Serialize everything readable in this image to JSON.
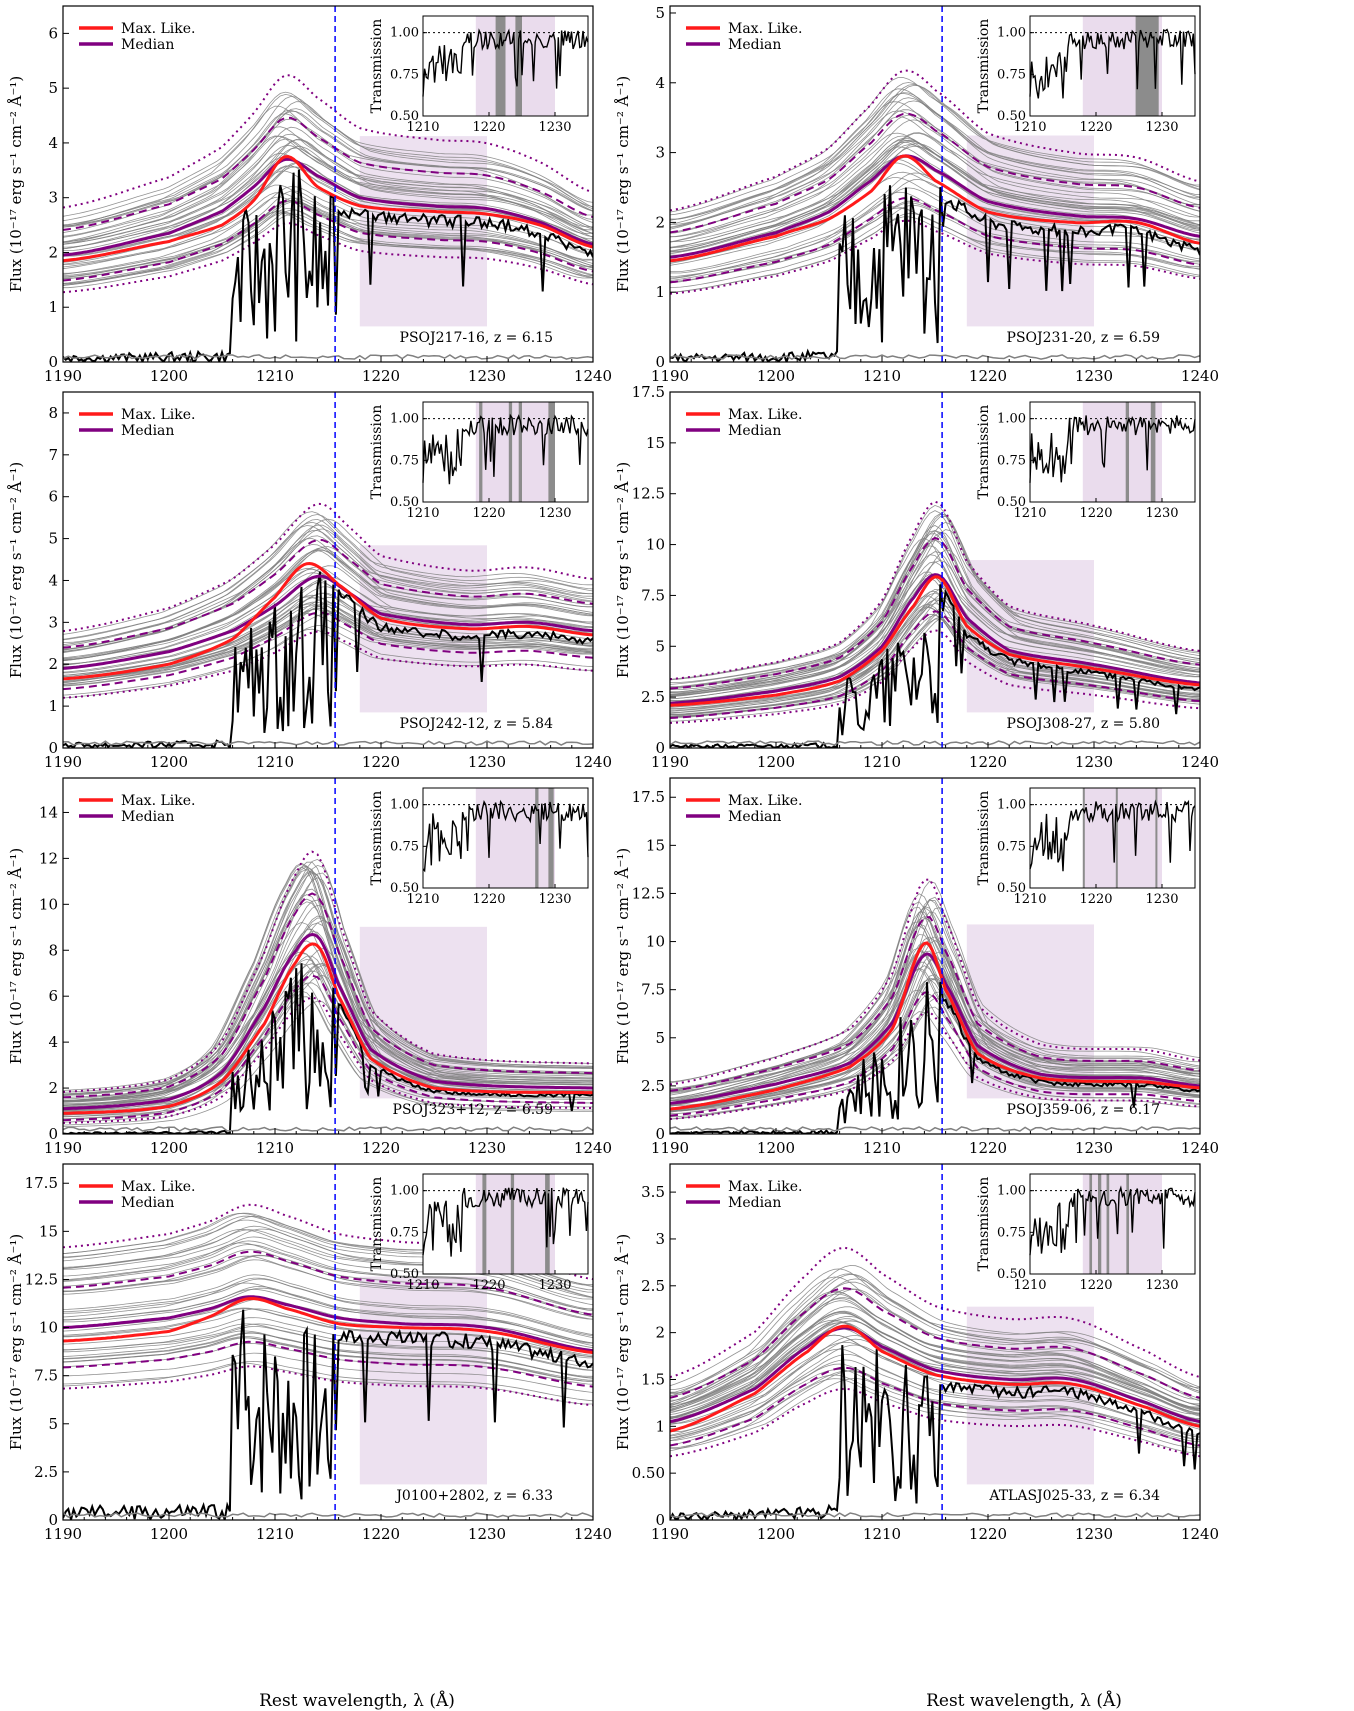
{
  "figure": {
    "xlabel": "Rest wavelength, λ (Å)",
    "ylabel": "Flux (10⁻¹⁷ erg s⁻¹ cm⁻² Å⁻¹)",
    "inset_ylabel": "Transmission",
    "legend": [
      "Max. Like.",
      "Median"
    ],
    "colors": {
      "samples": "#808080",
      "max_like": "#ff1a1a",
      "median": "#800080",
      "observed": "#000000",
      "noise": "#808080",
      "lya_line": "#0000ff",
      "shade": "#eadced",
      "mask": "#8c8c8c"
    }
  },
  "chart_data": [
    {
      "type": "line",
      "object_label": "PSOJ217-16, z = 6.15",
      "xlim": [
        1190,
        1240
      ],
      "ylim": [
        0,
        6.5
      ],
      "xticks": [
        1190,
        1200,
        1210,
        1220,
        1230,
        1240
      ],
      "yticks": [
        0,
        1,
        2,
        3,
        4,
        5,
        6
      ],
      "lya_line_x": 1215.67,
      "shaded_region": [
        1218,
        1230
      ],
      "series": [
        {
          "name": "Max. Like.",
          "x": [
            1190,
            1200,
            1205,
            1208,
            1211,
            1214,
            1218,
            1225,
            1230,
            1235,
            1240
          ],
          "y": [
            1.85,
            2.2,
            2.5,
            2.95,
            3.75,
            3.2,
            2.85,
            2.75,
            2.7,
            2.5,
            2.1
          ]
        },
        {
          "name": "Median",
          "x": [
            1190,
            1200,
            1205,
            1208,
            1211,
            1214,
            1218,
            1225,
            1230,
            1235,
            1240
          ],
          "y": [
            1.95,
            2.35,
            2.75,
            3.2,
            3.7,
            3.4,
            3.0,
            2.85,
            2.8,
            2.55,
            2.15
          ]
        }
      ],
      "inset": {
        "xlim": [
          1210,
          1235
        ],
        "ylim": [
          0.5,
          1.1
        ],
        "xticks": [
          1210,
          1220,
          1230
        ],
        "yticks": [
          0.5,
          0.75,
          1.0
        ],
        "mask_bands": [
          [
            1221,
            1222.5
          ],
          [
            1224,
            1225
          ]
        ]
      }
    },
    {
      "type": "line",
      "object_label": "PSOJ231-20, z = 6.59",
      "xlim": [
        1190,
        1240
      ],
      "ylim": [
        0,
        5.1
      ],
      "xticks": [
        1190,
        1200,
        1210,
        1220,
        1230,
        1240
      ],
      "yticks": [
        0,
        1,
        2,
        3,
        4,
        5
      ],
      "lya_line_x": 1215.67,
      "shaded_region": [
        1218,
        1230
      ],
      "series": [
        {
          "name": "Max. Like.",
          "x": [
            1190,
            1200,
            1205,
            1209,
            1212,
            1215,
            1220,
            1228,
            1234,
            1240
          ],
          "y": [
            1.45,
            1.8,
            2.05,
            2.45,
            2.95,
            2.6,
            2.15,
            2.0,
            2.0,
            1.7
          ]
        },
        {
          "name": "Median",
          "x": [
            1190,
            1200,
            1205,
            1209,
            1212,
            1215,
            1220,
            1228,
            1234,
            1240
          ],
          "y": [
            1.5,
            1.85,
            2.15,
            2.6,
            2.95,
            2.75,
            2.3,
            2.1,
            2.05,
            1.8
          ]
        }
      ],
      "inset": {
        "xlim": [
          1210,
          1235
        ],
        "ylim": [
          0.5,
          1.1
        ],
        "xticks": [
          1210,
          1220,
          1230
        ],
        "yticks": [
          0.5,
          0.75,
          1.0
        ],
        "mask_bands": [
          [
            1226,
            1229.5
          ]
        ]
      }
    },
    {
      "type": "line",
      "object_label": "PSOJ242-12, z = 5.84",
      "xlim": [
        1190,
        1240
      ],
      "ylim": [
        0,
        8.5
      ],
      "xticks": [
        1190,
        1200,
        1210,
        1220,
        1230,
        1240
      ],
      "yticks": [
        0,
        1,
        2,
        3,
        4,
        5,
        6,
        7,
        8
      ],
      "lya_line_x": 1215.67,
      "shaded_region": [
        1218,
        1230
      ],
      "series": [
        {
          "name": "Max. Like.",
          "x": [
            1190,
            1200,
            1206,
            1210,
            1213,
            1216,
            1220,
            1228,
            1234,
            1240
          ],
          "y": [
            1.65,
            2.0,
            2.6,
            3.6,
            4.4,
            3.9,
            3.1,
            2.85,
            2.9,
            2.7
          ]
        },
        {
          "name": "Median",
          "x": [
            1190,
            1200,
            1206,
            1210,
            1214,
            1217,
            1220,
            1228,
            1234,
            1240
          ],
          "y": [
            1.9,
            2.3,
            2.8,
            3.4,
            4.1,
            3.7,
            3.2,
            2.95,
            3.0,
            2.8
          ]
        }
      ],
      "inset": {
        "xlim": [
          1210,
          1235
        ],
        "ylim": [
          0.5,
          1.1
        ],
        "xticks": [
          1210,
          1220,
          1230
        ],
        "yticks": [
          0.5,
          0.75,
          1.0
        ],
        "mask_bands": [
          [
            1218.5,
            1219
          ],
          [
            1223,
            1223.5
          ],
          [
            1224.5,
            1225
          ],
          [
            1229,
            1230
          ]
        ]
      }
    },
    {
      "type": "line",
      "object_label": "PSOJ308-27, z = 5.80",
      "xlim": [
        1190,
        1240
      ],
      "ylim": [
        0,
        17.5
      ],
      "xticks": [
        1190,
        1200,
        1210,
        1220,
        1230,
        1240
      ],
      "yticks": [
        0,
        2.5,
        5.0,
        7.5,
        10.0,
        12.5,
        15.0,
        17.5
      ],
      "lya_line_x": 1215.67,
      "shaded_region": [
        1218,
        1230
      ],
      "series": [
        {
          "name": "Max. Like.",
          "x": [
            1190,
            1200,
            1206,
            1210,
            1213,
            1215.3,
            1218,
            1222,
            1230,
            1240
          ],
          "y": [
            2.1,
            2.6,
            3.3,
            4.8,
            7.0,
            8.4,
            6.0,
            4.6,
            3.9,
            3.1
          ]
        },
        {
          "name": "Median",
          "x": [
            1190,
            1200,
            1206,
            1210,
            1213,
            1215.3,
            1218,
            1222,
            1230,
            1240
          ],
          "y": [
            2.2,
            2.8,
            3.5,
            5.0,
            7.4,
            8.5,
            6.4,
            4.8,
            4.1,
            3.2
          ]
        }
      ],
      "inset": {
        "xlim": [
          1210,
          1235
        ],
        "ylim": [
          0.5,
          1.1
        ],
        "xticks": [
          1210,
          1220,
          1230
        ],
        "yticks": [
          0.5,
          0.75,
          1.0
        ],
        "mask_bands": [
          [
            1224.5,
            1225
          ],
          [
            1228.3,
            1229
          ]
        ]
      }
    },
    {
      "type": "line",
      "object_label": "PSOJ323+12, z = 6.59",
      "xlim": [
        1190,
        1240
      ],
      "ylim": [
        0,
        15.5
      ],
      "xticks": [
        1190,
        1200,
        1210,
        1220,
        1230,
        1240
      ],
      "yticks": [
        0,
        2,
        4,
        6,
        8,
        10,
        12,
        14
      ],
      "lya_line_x": 1215.67,
      "shaded_region": [
        1218,
        1230
      ],
      "series": [
        {
          "name": "Max. Like.",
          "x": [
            1190,
            1200,
            1205,
            1209,
            1212,
            1214,
            1216,
            1219,
            1225,
            1240
          ],
          "y": [
            0.9,
            1.2,
            2.3,
            4.8,
            7.5,
            8.2,
            6.0,
            3.3,
            2.0,
            1.8
          ]
        },
        {
          "name": "Median",
          "x": [
            1190,
            1200,
            1205,
            1209,
            1212,
            1214,
            1216,
            1219,
            1225,
            1240
          ],
          "y": [
            1.1,
            1.5,
            2.7,
            5.5,
            8.0,
            8.6,
            6.5,
            3.7,
            2.3,
            2.0
          ]
        }
      ],
      "inset": {
        "xlim": [
          1210,
          1235
        ],
        "ylim": [
          0.5,
          1.1
        ],
        "xticks": [
          1210,
          1220,
          1230
        ],
        "yticks": [
          0.5,
          0.75,
          1.0
        ],
        "mask_bands": [
          [
            1227,
            1227.5
          ],
          [
            1229,
            1229.8
          ]
        ]
      }
    },
    {
      "type": "line",
      "object_label": "PSOJ359-06, z = 6.17",
      "xlim": [
        1190,
        1240
      ],
      "ylim": [
        0,
        18.5
      ],
      "xticks": [
        1190,
        1200,
        1210,
        1220,
        1230,
        1240
      ],
      "yticks": [
        0,
        2.5,
        5.0,
        7.5,
        10.0,
        12.5,
        15.0,
        17.5
      ],
      "lya_line_x": 1215.67,
      "shaded_region": [
        1218,
        1230
      ],
      "series": [
        {
          "name": "Max. Like.",
          "x": [
            1190,
            1200,
            1207,
            1211,
            1214,
            1216,
            1219,
            1225,
            1235,
            1240
          ],
          "y": [
            1.3,
            2.3,
            3.5,
            5.5,
            9.9,
            7.5,
            4.2,
            2.9,
            2.7,
            2.4
          ]
        },
        {
          "name": "Median",
          "x": [
            1190,
            1200,
            1207,
            1211,
            1214,
            1216,
            1219,
            1225,
            1235,
            1240
          ],
          "y": [
            1.6,
            2.6,
            3.7,
            5.8,
            9.3,
            7.8,
            4.6,
            3.1,
            2.9,
            2.5
          ]
        }
      ],
      "inset": {
        "xlim": [
          1210,
          1235
        ],
        "ylim": [
          0.5,
          1.1
        ],
        "xticks": [
          1210,
          1220,
          1230
        ],
        "yticks": [
          0.5,
          0.75,
          1.0
        ],
        "mask_bands": [
          [
            1218,
            1218.3
          ],
          [
            1223,
            1223.3
          ],
          [
            1229,
            1229.3
          ]
        ]
      }
    },
    {
      "type": "line",
      "object_label": "J0100+2802, z = 6.33",
      "xlim": [
        1190,
        1240
      ],
      "ylim": [
        0,
        18.5
      ],
      "xticks": [
        1190,
        1200,
        1210,
        1220,
        1230,
        1240
      ],
      "yticks": [
        0,
        2.5,
        5.0,
        7.5,
        10.0,
        12.5,
        15.0,
        17.5
      ],
      "lya_line_x": 1215.67,
      "shaded_region": [
        1218,
        1230
      ],
      "series": [
        {
          "name": "Max. Like.",
          "x": [
            1190,
            1200,
            1204,
            1207.5,
            1211,
            1216,
            1222,
            1230,
            1240
          ],
          "y": [
            9.3,
            9.8,
            10.6,
            11.5,
            11.0,
            10.2,
            10.0,
            9.8,
            8.7
          ]
        },
        {
          "name": "Median",
          "x": [
            1190,
            1200,
            1204,
            1207.5,
            1211,
            1216,
            1222,
            1230,
            1240
          ],
          "y": [
            10.0,
            10.5,
            11.0,
            11.6,
            11.2,
            10.5,
            10.2,
            10.0,
            8.8
          ]
        }
      ],
      "inset": {
        "xlim": [
          1210,
          1235
        ],
        "ylim": [
          0.5,
          1.1
        ],
        "xticks": [
          1210,
          1220,
          1230
        ],
        "yticks": [
          0.5,
          0.75,
          1.0
        ],
        "mask_bands": [
          [
            1219,
            1219.6
          ],
          [
            1223.3,
            1223.8
          ],
          [
            1228.5,
            1229.2
          ]
        ]
      }
    },
    {
      "type": "line",
      "object_label": "ATLASJ025-33, z = 6.34",
      "xlim": [
        1190,
        1240
      ],
      "ylim": [
        0,
        3.8
      ],
      "xticks": [
        1190,
        1200,
        1210,
        1220,
        1230,
        1240
      ],
      "yticks": [
        0,
        0.5,
        1.0,
        1.5,
        2.0,
        2.5,
        3.0,
        3.5
      ],
      "lya_line_x": 1215.67,
      "shaded_region": [
        1218,
        1230
      ],
      "series": [
        {
          "name": "Max. Like.",
          "x": [
            1190,
            1198,
            1203,
            1206.5,
            1210,
            1215,
            1222,
            1228,
            1235,
            1240
          ],
          "y": [
            0.95,
            1.35,
            1.8,
            2.07,
            1.8,
            1.55,
            1.45,
            1.45,
            1.2,
            1.0
          ]
        },
        {
          "name": "Median",
          "x": [
            1190,
            1198,
            1203,
            1206.5,
            1210,
            1215,
            1222,
            1228,
            1235,
            1240
          ],
          "y": [
            1.05,
            1.4,
            1.85,
            2.05,
            1.85,
            1.6,
            1.5,
            1.5,
            1.25,
            1.05
          ]
        }
      ],
      "inset": {
        "xlim": [
          1210,
          1235
        ],
        "ylim": [
          0.5,
          1.1
        ],
        "xticks": [
          1210,
          1220,
          1230
        ],
        "yticks": [
          0.5,
          0.75,
          1.0
        ],
        "mask_bands": [
          [
            1219,
            1219.4
          ],
          [
            1220.3,
            1220.8
          ],
          [
            1221.6,
            1222
          ],
          [
            1224.6,
            1225
          ]
        ]
      }
    }
  ]
}
